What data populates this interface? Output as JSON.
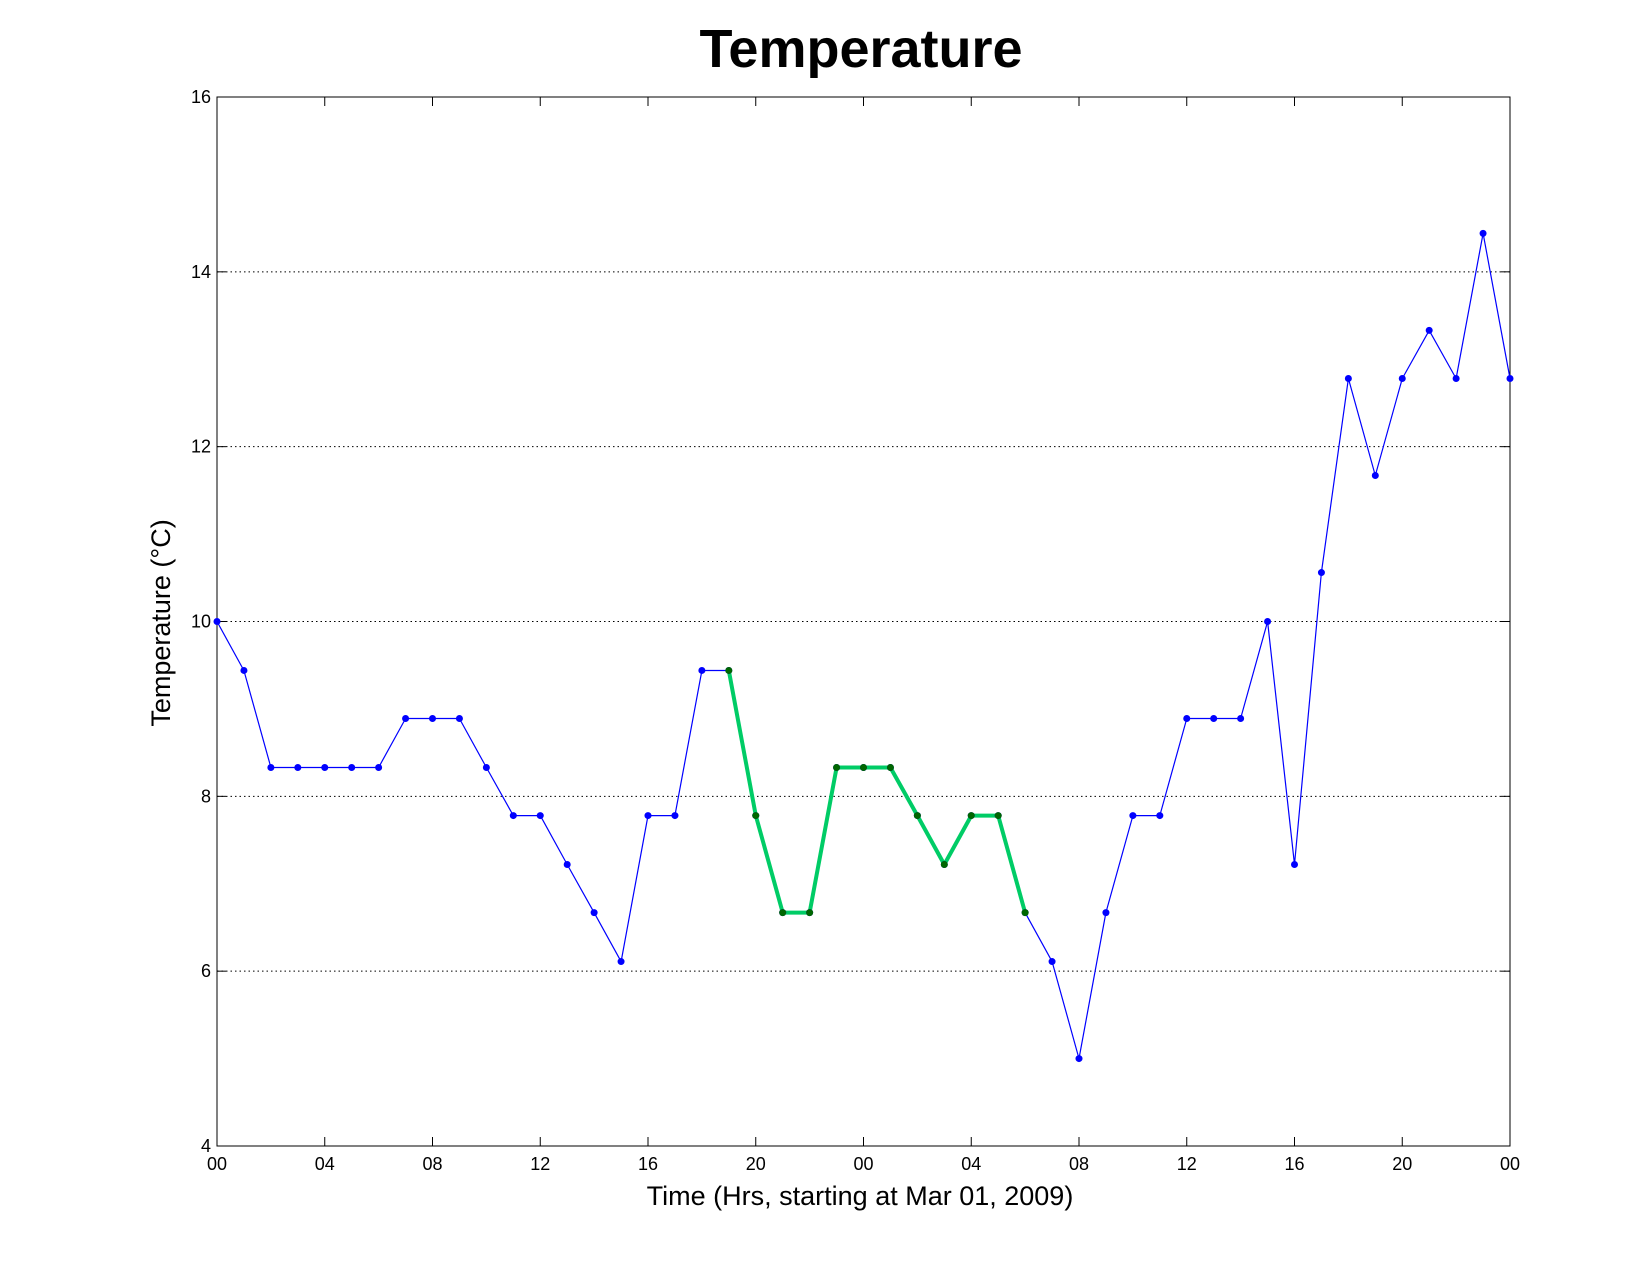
{
  "chart_data": {
    "type": "line",
    "title": "Temperature",
    "xlabel": "Time (Hrs, starting at Mar 01, 2009)",
    "ylabel": "Temperature (°C)",
    "xlim": [
      0,
      48
    ],
    "ylim": [
      4,
      16
    ],
    "x_ticks": [
      0,
      4,
      8,
      12,
      16,
      20,
      24,
      28,
      32,
      36,
      40,
      44,
      48
    ],
    "x_tick_labels": [
      "00",
      "04",
      "08",
      "12",
      "16",
      "20",
      "00",
      "04",
      "08",
      "12",
      "16",
      "20",
      "00"
    ],
    "y_ticks": [
      4,
      6,
      8,
      10,
      12,
      14,
      16
    ],
    "y_tick_labels": [
      "4",
      "6",
      "8",
      "10",
      "12",
      "14",
      "16"
    ],
    "grid": "y-dotted",
    "series": [
      {
        "color": "#0000ff",
        "x": [
          0,
          1,
          2,
          3,
          4,
          5,
          6,
          7,
          8,
          9,
          10,
          11,
          12,
          13,
          14,
          15,
          16,
          17,
          18,
          19,
          20,
          21,
          22,
          23,
          24,
          25,
          26,
          27,
          28,
          29,
          30,
          31,
          32,
          33,
          34,
          35,
          36,
          37,
          38,
          39,
          40,
          41,
          42,
          43,
          44,
          45,
          46,
          47,
          48
        ],
        "y": [
          10.0,
          9.44,
          8.33,
          8.33,
          8.33,
          8.33,
          8.33,
          8.89,
          8.89,
          8.89,
          8.33,
          7.78,
          7.78,
          7.22,
          6.67,
          6.11,
          7.78,
          7.78,
          9.44,
          9.44,
          7.78,
          6.67,
          6.67,
          8.33,
          8.33,
          8.33,
          7.78,
          7.22,
          7.78,
          7.78,
          6.67,
          6.11,
          5.0,
          6.67,
          7.78,
          7.78,
          8.89,
          8.89,
          8.89,
          10.0,
          7.22,
          10.56,
          12.78,
          11.67,
          12.78,
          13.33,
          12.78,
          14.44,
          12.78
        ]
      },
      {
        "color": "#00cc66",
        "highlight": true,
        "x": [
          19,
          20,
          21,
          22,
          23,
          24,
          25,
          26,
          27,
          28,
          29,
          30
        ],
        "y": [
          9.44,
          7.78,
          6.67,
          6.67,
          8.33,
          8.33,
          8.33,
          7.78,
          7.22,
          7.78,
          7.78,
          6.67
        ]
      }
    ]
  }
}
